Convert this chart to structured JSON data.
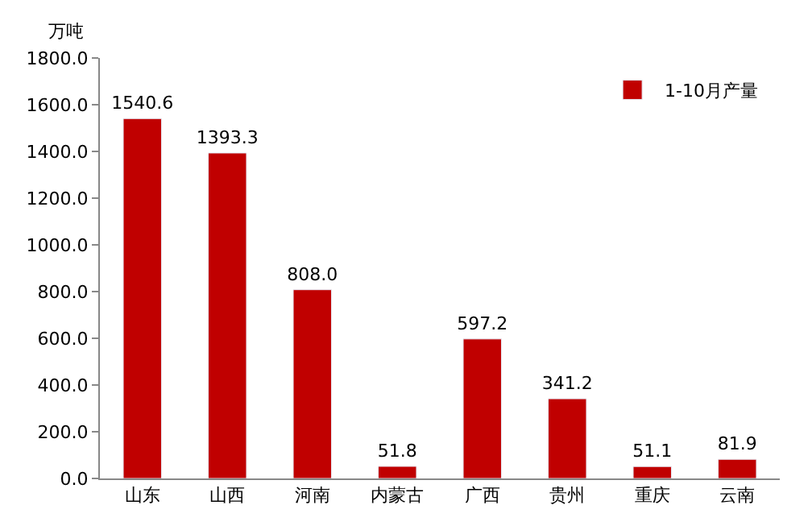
{
  "chart_data": {
    "type": "bar",
    "ylabel": "万吨",
    "categories": [
      "山东",
      "山西",
      "河南",
      "内蒙古",
      "广西",
      "贵州",
      "重庆",
      "云南"
    ],
    "series": [
      {
        "name": "1-10月产量",
        "color": "#c00000",
        "values": [
          1540.6,
          1393.3,
          808.0,
          51.8,
          597.2,
          341.2,
          51.1,
          81.9
        ],
        "value_labels": [
          "1540.6",
          "1393.3",
          "808.0",
          "51.8",
          "597.2",
          "341.2",
          "51.1",
          "81.9"
        ]
      }
    ],
    "ylim": [
      0,
      1800
    ],
    "yticks": [
      {
        "value": 0,
        "label": "0.0"
      },
      {
        "value": 200,
        "label": "200.0"
      },
      {
        "value": 400,
        "label": "400.0"
      },
      {
        "value": 600,
        "label": "600.0"
      },
      {
        "value": 800,
        "label": "800.0"
      },
      {
        "value": 1000,
        "label": "1000.0"
      },
      {
        "value": 1200,
        "label": "1200.0"
      },
      {
        "value": 1400,
        "label": "1400.0"
      },
      {
        "value": 1600,
        "label": "1600.0"
      },
      {
        "value": 1800,
        "label": "1800.0"
      }
    ],
    "legend": "top right"
  }
}
